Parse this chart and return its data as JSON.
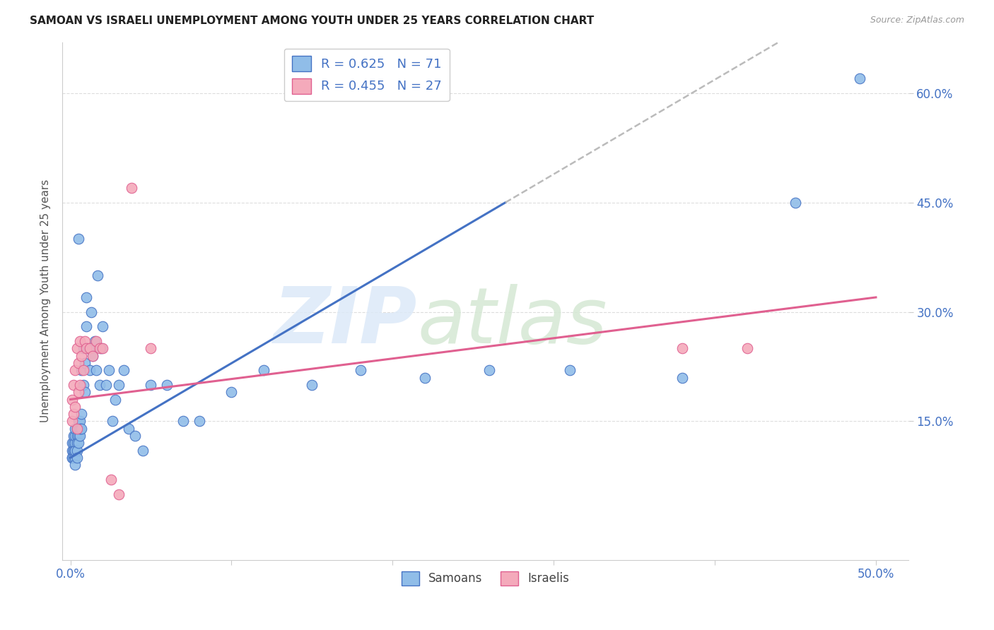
{
  "title": "SAMOAN VS ISRAELI UNEMPLOYMENT AMONG YOUTH UNDER 25 YEARS CORRELATION CHART",
  "source": "Source: ZipAtlas.com",
  "ylabel": "Unemployment Among Youth under 25 years",
  "yticks_labels": [
    "15.0%",
    "30.0%",
    "45.0%",
    "60.0%"
  ],
  "yticks_vals": [
    0.15,
    0.3,
    0.45,
    0.6
  ],
  "xticks_labels": [
    "0.0%",
    "50.0%"
  ],
  "xticks_vals": [
    0.0,
    0.5
  ],
  "xlim": [
    -0.005,
    0.52
  ],
  "ylim": [
    -0.04,
    0.67
  ],
  "legend_samoans": "Samoans",
  "legend_israelis": "Israelis",
  "r_samoans": "R = 0.625",
  "n_samoans": "N = 71",
  "r_israelis": "R = 0.455",
  "n_israelis": "N = 27",
  "color_samoans": "#90BDE8",
  "color_israelis": "#F4AABB",
  "color_trend_samoans": "#4472C4",
  "color_trend_israelis": "#E06090",
  "color_trend_ext": "#BBBBBB",
  "background_color": "#FFFFFF",
  "grid_color": "#DDDDDD",
  "samoans_x": [
    0.001,
    0.001,
    0.001,
    0.001,
    0.002,
    0.002,
    0.002,
    0.002,
    0.002,
    0.003,
    0.003,
    0.003,
    0.003,
    0.003,
    0.003,
    0.003,
    0.004,
    0.004,
    0.004,
    0.004,
    0.004,
    0.005,
    0.005,
    0.005,
    0.005,
    0.006,
    0.006,
    0.006,
    0.007,
    0.007,
    0.007,
    0.008,
    0.008,
    0.009,
    0.009,
    0.01,
    0.01,
    0.011,
    0.012,
    0.013,
    0.014,
    0.015,
    0.016,
    0.017,
    0.018,
    0.019,
    0.02,
    0.022,
    0.024,
    0.026,
    0.028,
    0.03,
    0.033,
    0.036,
    0.04,
    0.045,
    0.05,
    0.06,
    0.07,
    0.08,
    0.1,
    0.12,
    0.15,
    0.18,
    0.22,
    0.26,
    0.31,
    0.38,
    0.45,
    0.49,
    0.005
  ],
  "samoans_y": [
    0.11,
    0.1,
    0.12,
    0.1,
    0.11,
    0.1,
    0.12,
    0.11,
    0.13,
    0.12,
    0.11,
    0.13,
    0.1,
    0.14,
    0.11,
    0.09,
    0.13,
    0.12,
    0.11,
    0.14,
    0.1,
    0.14,
    0.13,
    0.12,
    0.15,
    0.15,
    0.13,
    0.14,
    0.16,
    0.14,
    0.22,
    0.2,
    0.25,
    0.23,
    0.19,
    0.28,
    0.32,
    0.25,
    0.22,
    0.3,
    0.24,
    0.26,
    0.22,
    0.35,
    0.2,
    0.25,
    0.28,
    0.2,
    0.22,
    0.15,
    0.18,
    0.2,
    0.22,
    0.14,
    0.13,
    0.11,
    0.2,
    0.2,
    0.15,
    0.15,
    0.19,
    0.22,
    0.2,
    0.22,
    0.21,
    0.22,
    0.22,
    0.21,
    0.45,
    0.62,
    0.4
  ],
  "israelis_x": [
    0.001,
    0.001,
    0.002,
    0.002,
    0.003,
    0.003,
    0.004,
    0.004,
    0.005,
    0.005,
    0.006,
    0.006,
    0.007,
    0.008,
    0.009,
    0.01,
    0.012,
    0.014,
    0.016,
    0.018,
    0.02,
    0.025,
    0.03,
    0.038,
    0.05,
    0.38,
    0.42
  ],
  "israelis_y": [
    0.15,
    0.18,
    0.16,
    0.2,
    0.17,
    0.22,
    0.14,
    0.25,
    0.19,
    0.23,
    0.2,
    0.26,
    0.24,
    0.22,
    0.26,
    0.25,
    0.25,
    0.24,
    0.26,
    0.25,
    0.25,
    0.07,
    0.05,
    0.47,
    0.25,
    0.25,
    0.25
  ]
}
